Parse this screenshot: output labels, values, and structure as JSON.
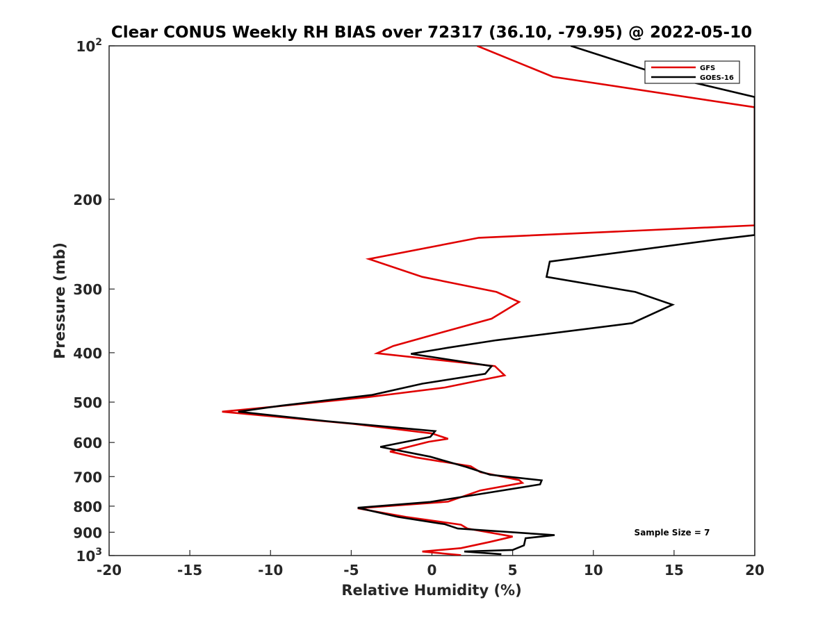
{
  "chart_data": {
    "type": "line",
    "title": "Clear CONUS Weekly RH BIAS over 72317 (36.10, -79.95) @ 2022-05-10",
    "xlabel": "Relative Humidity (%)",
    "ylabel": "Pressure (mb)",
    "xlim": [
      -20,
      20
    ],
    "ylim": [
      100,
      1000
    ],
    "yscale": "log",
    "y_reversed": true,
    "grid": false,
    "legend_position": "top-right",
    "x_ticks": [
      -20,
      -15,
      -10,
      -5,
      0,
      5,
      10,
      15,
      20
    ],
    "x_tick_labels": [
      "-20",
      "-15",
      "-10",
      "-5",
      "0",
      "5",
      "10",
      "15",
      "20"
    ],
    "y_ticks": [
      100,
      200,
      300,
      400,
      500,
      600,
      700,
      800,
      900,
      1000
    ],
    "y_tick_labels": [
      {
        "base": "10",
        "exp": "2"
      },
      {
        "base": "200",
        "exp": ""
      },
      {
        "base": "300",
        "exp": ""
      },
      {
        "base": "400",
        "exp": ""
      },
      {
        "base": "500",
        "exp": ""
      },
      {
        "base": "600",
        "exp": ""
      },
      {
        "base": "700",
        "exp": ""
      },
      {
        "base": "800",
        "exp": ""
      },
      {
        "base": "900",
        "exp": ""
      },
      {
        "base": "10",
        "exp": "3"
      }
    ],
    "annotation": "Sample Size = 7",
    "series": [
      {
        "name": "GFS",
        "color": "#e00000",
        "points": [
          [
            2.8,
            100
          ],
          [
            7.5,
            115
          ],
          [
            20,
            132
          ],
          [
            20,
            225
          ],
          [
            2.9,
            238
          ],
          [
            -3.9,
            262
          ],
          [
            -0.6,
            284
          ],
          [
            4.0,
            304
          ],
          [
            5.4,
            318
          ],
          [
            3.7,
            343
          ],
          [
            0.6,
            365
          ],
          [
            -2.4,
            388
          ],
          [
            -3.4,
            401
          ],
          [
            3.9,
            425
          ],
          [
            4.5,
            443
          ],
          [
            0.8,
            468
          ],
          [
            -4.0,
            489
          ],
          [
            -9.7,
            510
          ],
          [
            -13.0,
            522
          ],
          [
            -4.8,
            552
          ],
          [
            0.0,
            576
          ],
          [
            1.0,
            590
          ],
          [
            -0.2,
            598
          ],
          [
            -2.6,
            625
          ],
          [
            -1.0,
            642
          ],
          [
            2.4,
            668
          ],
          [
            3.0,
            686
          ],
          [
            5.4,
            711
          ],
          [
            5.6,
            720
          ],
          [
            3.0,
            745
          ],
          [
            1.0,
            784
          ],
          [
            -4.6,
            808
          ],
          [
            -1.6,
            840
          ],
          [
            1.8,
            870
          ],
          [
            2.2,
            885
          ],
          [
            5.0,
            918
          ],
          [
            3.6,
            940
          ],
          [
            1.8,
            967
          ],
          [
            -0.6,
            982
          ],
          [
            1.8,
            998
          ]
        ]
      },
      {
        "name": "GOES-16",
        "color": "#000000",
        "points": [
          [
            8.6,
            100
          ],
          [
            14.2,
            114
          ],
          [
            20,
            126
          ],
          [
            20,
            235
          ],
          [
            17.6,
            240
          ],
          [
            7.3,
            265
          ],
          [
            7.1,
            284
          ],
          [
            12.6,
            304
          ],
          [
            14.9,
            322
          ],
          [
            12.4,
            350
          ],
          [
            4.0,
            378
          ],
          [
            1.0,
            391
          ],
          [
            -1.3,
            402
          ],
          [
            3.7,
            425
          ],
          [
            3.3,
            440
          ],
          [
            -0.6,
            460
          ],
          [
            -3.7,
            484
          ],
          [
            -9.3,
            508
          ],
          [
            -12.0,
            522
          ],
          [
            -6.5,
            545
          ],
          [
            0.2,
            570
          ],
          [
            -0.1,
            585
          ],
          [
            -3.2,
            612
          ],
          [
            -0.1,
            640
          ],
          [
            2.1,
            670
          ],
          [
            3.6,
            694
          ],
          [
            6.8,
            712
          ],
          [
            6.7,
            725
          ],
          [
            3.6,
            752
          ],
          [
            -0.1,
            785
          ],
          [
            -4.6,
            806
          ],
          [
            -2.1,
            840
          ],
          [
            0.8,
            868
          ],
          [
            1.6,
            885
          ],
          [
            7.6,
            912
          ],
          [
            5.8,
            925
          ],
          [
            5.7,
            955
          ],
          [
            5.0,
            975
          ],
          [
            2.0,
            982
          ],
          [
            4.3,
            994
          ]
        ]
      }
    ]
  }
}
